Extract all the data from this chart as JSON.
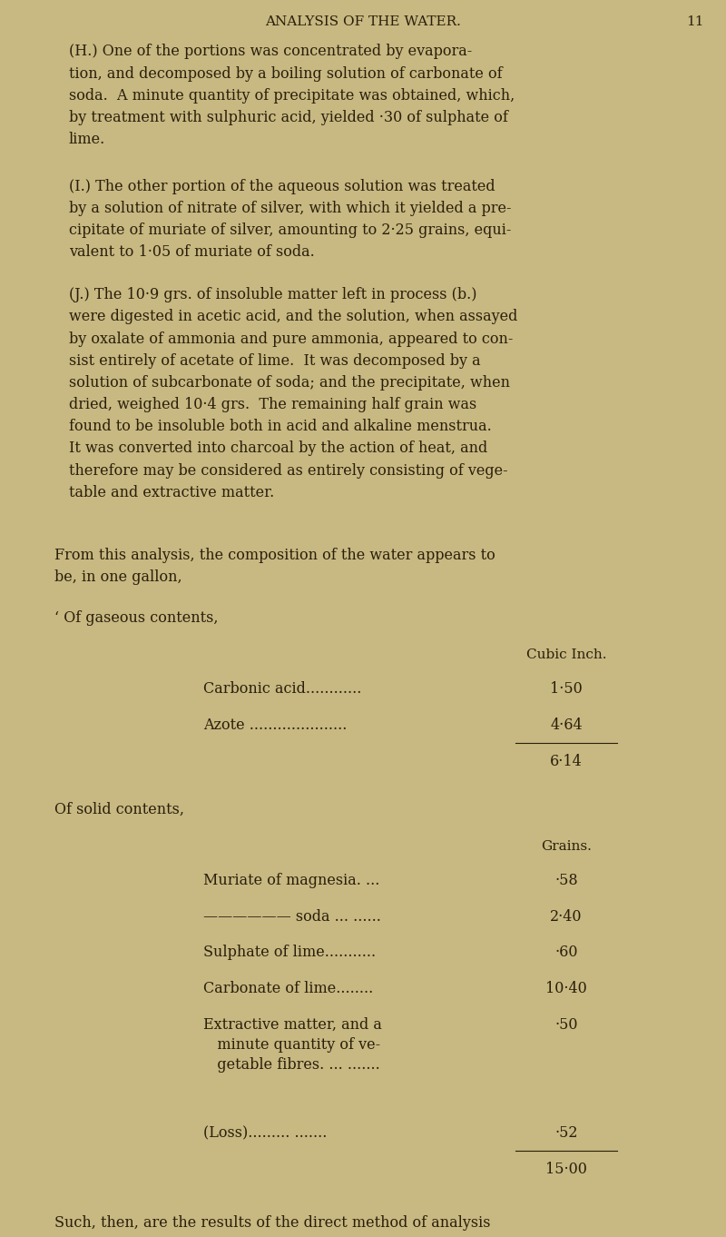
{
  "background_color": "#c8b882",
  "text_color": "#2a1f0a",
  "page_width": 8.0,
  "page_height": 13.62,
  "header": "ANALYSIS OF THE WATER.",
  "page_number": "11",
  "para_h": "(H.) One of the portions was concentrated by evapora-\ntion, and decomposed by a boiling solution of carbonate of\nsoda.  A minute quantity of precipitate was obtained, which,\nby treatment with sulphuric acid, yielded ·30 of sulphate of\nlime.",
  "para_i": "(I.) The other portion of the aqueous solution was treated\nby a solution of nitrate of silver, with which it yielded a pre-\ncipitate of muriate of silver, amounting to 2·25 grains, equi-\nvalent to 1·05 of muriate of soda.",
  "para_j": "(J.) The 10·9 grs. of insoluble matter left in process (b.)\nwere digested in acetic acid, and the solution, when assayed\nby oxalate of ammonia and pure ammonia, appeared to con-\nsist entirely of acetate of lime.  It was decomposed by a\nsolution of subcarbonate of soda; and the precipitate, when\ndried, weighed 10·4 grs.  The remaining half grain was\nfound to be insoluble both in acid and alkaline menstrua.\nIt was converted into charcoal by the action of heat, and\ntherefore may be considered as entirely consisting of vege-\ntable and extractive matter.",
  "para_from": "From this analysis, the composition of the water appears to\nbe, in one gallon,",
  "para_gaseous_intro": "‘ Of gaseous contents,",
  "gaseous_label": "Cubic Inch.",
  "gaseous_rows": [
    [
      "Carbonic acid............",
      "1·50"
    ],
    [
      "Azote .....................",
      "4·64"
    ]
  ],
  "gaseous_total": "6·14",
  "solid_intro": "Of solid contents,",
  "solid_unit": "Grains.",
  "solid_rows": [
    [
      "Muriate of magnesia. ...",
      "·58"
    ],
    [
      "—————— soda ... ......",
      "2·40"
    ],
    [
      "Sulphate of lime...........",
      "·60"
    ],
    [
      "Carbonate of lime........ ",
      "10·40"
    ],
    [
      "Extractive matter, and a\n   minute quantity of ve-\n   getable fibres. ... .......",
      "·50"
    ],
    [
      "(Loss)......... .......",
      "·52"
    ]
  ],
  "solid_total": "15·00",
  "para_footer": "Such, then, are the results of the direct method of analysis\nby evaporation ; but I must not omit to offer a statement of"
}
